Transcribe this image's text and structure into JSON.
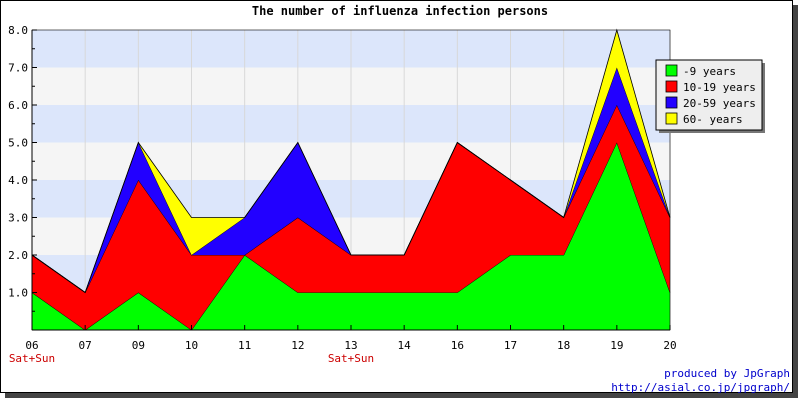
{
  "chart_data": {
    "type": "area",
    "stacked": true,
    "title": "The number of influenza infection persons",
    "categories": [
      "06",
      "07",
      "09",
      "10",
      "11",
      "12",
      "13",
      "14",
      "16",
      "17",
      "18",
      "19",
      "20"
    ],
    "weekend_labels": [
      "Sat+Sun",
      "",
      "",
      "",
      "",
      "",
      "Sat+Sun",
      "",
      "",
      "",
      "",
      "",
      ""
    ],
    "weekend_color": "#cc0000",
    "series": [
      {
        "name": "-9 years",
        "color": "#00ff00",
        "values": [
          1,
          0,
          1,
          0,
          2,
          1,
          1,
          1,
          1,
          2,
          2,
          5,
          1
        ]
      },
      {
        "name": "10-19 years",
        "color": "#ff0000",
        "values": [
          1,
          1,
          3,
          2,
          0,
          2,
          1,
          1,
          4,
          2,
          1,
          1,
          2
        ]
      },
      {
        "name": "20-59 years",
        "color": "#2200ff",
        "values": [
          0,
          0,
          1,
          0,
          1,
          2,
          0,
          0,
          0,
          0,
          0,
          1,
          0
        ]
      },
      {
        "name": "60- years",
        "color": "#ffff00",
        "values": [
          0,
          0,
          0,
          1,
          0,
          0,
          0,
          0,
          0,
          0,
          0,
          1,
          0
        ]
      }
    ],
    "y_ticks": [
      "1.0",
      "2.0",
      "3.0",
      "4.0",
      "5.0",
      "6.0",
      "7.0",
      "8.0"
    ],
    "ylim": [
      0,
      8
    ],
    "grid_band_colors": [
      "#f5f5f5",
      "#dce6fb"
    ],
    "legend_position": "top-right",
    "xlabel": "",
    "ylabel": ""
  },
  "footer": {
    "line1": "produced by JpGraph",
    "line2": "http://asial.co.jp/jpgraph/"
  }
}
